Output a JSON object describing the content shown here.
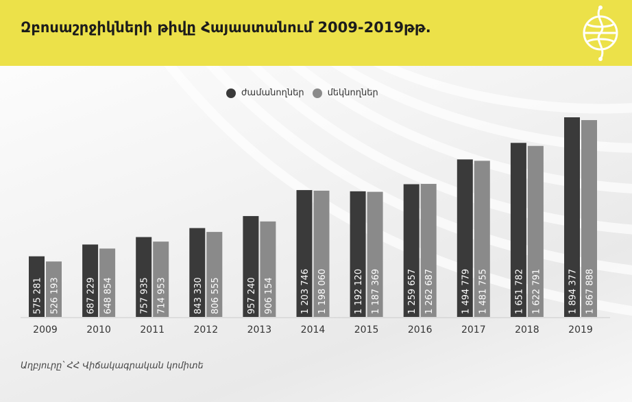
{
  "header": {
    "title": "Զբոսաշրջիկների թիվը Հայաստանում 2009-2019թթ."
  },
  "colors": {
    "header_bg": "#ece149",
    "arrivals": "#3a3a3a",
    "departures": "#8a8a8a",
    "logo": "#ffffff"
  },
  "logo": {
    "icon": "compass-globe-logo-icon"
  },
  "source": "Աղբյուրը՝ ՀՀ Վիճակագրական կոմիտե",
  "chart_data": {
    "type": "bar",
    "title": "Զբոսաշրջիկների թիվը Հայաստանում 2009-2019թթ.",
    "xlabel": "",
    "ylabel": "",
    "ylim": [
      0,
      2000000
    ],
    "grid": false,
    "legend_position": "top-center",
    "categories": [
      "2009",
      "2010",
      "2011",
      "2012",
      "2013",
      "2014",
      "2015",
      "2016",
      "2017",
      "2018",
      "2019"
    ],
    "series": [
      {
        "name": "ժամանողներ",
        "color": "#3a3a3a",
        "values": [
          575281,
          687229,
          757935,
          843330,
          957240,
          1203746,
          1192120,
          1259657,
          1494779,
          1651782,
          1894377
        ],
        "labels": [
          "575 281",
          "687 229",
          "757 935",
          "843 330",
          "957 240",
          "1 203 746",
          "1 192 120",
          "1 259 657",
          "1 494 779",
          "1 651 782",
          "1 894 377"
        ]
      },
      {
        "name": "մեկնողներ",
        "color": "#8a8a8a",
        "values": [
          526193,
          648854,
          714953,
          806555,
          906154,
          1198060,
          1187369,
          1262687,
          1481755,
          1622791,
          1867888
        ],
        "labels": [
          "526 193",
          "648 854",
          "714 953",
          "806 555",
          "906 154",
          "1 198 060",
          "1 187 369",
          "1 262 687",
          "1 481 755",
          "1 622 791",
          "1 867 888"
        ]
      }
    ]
  }
}
